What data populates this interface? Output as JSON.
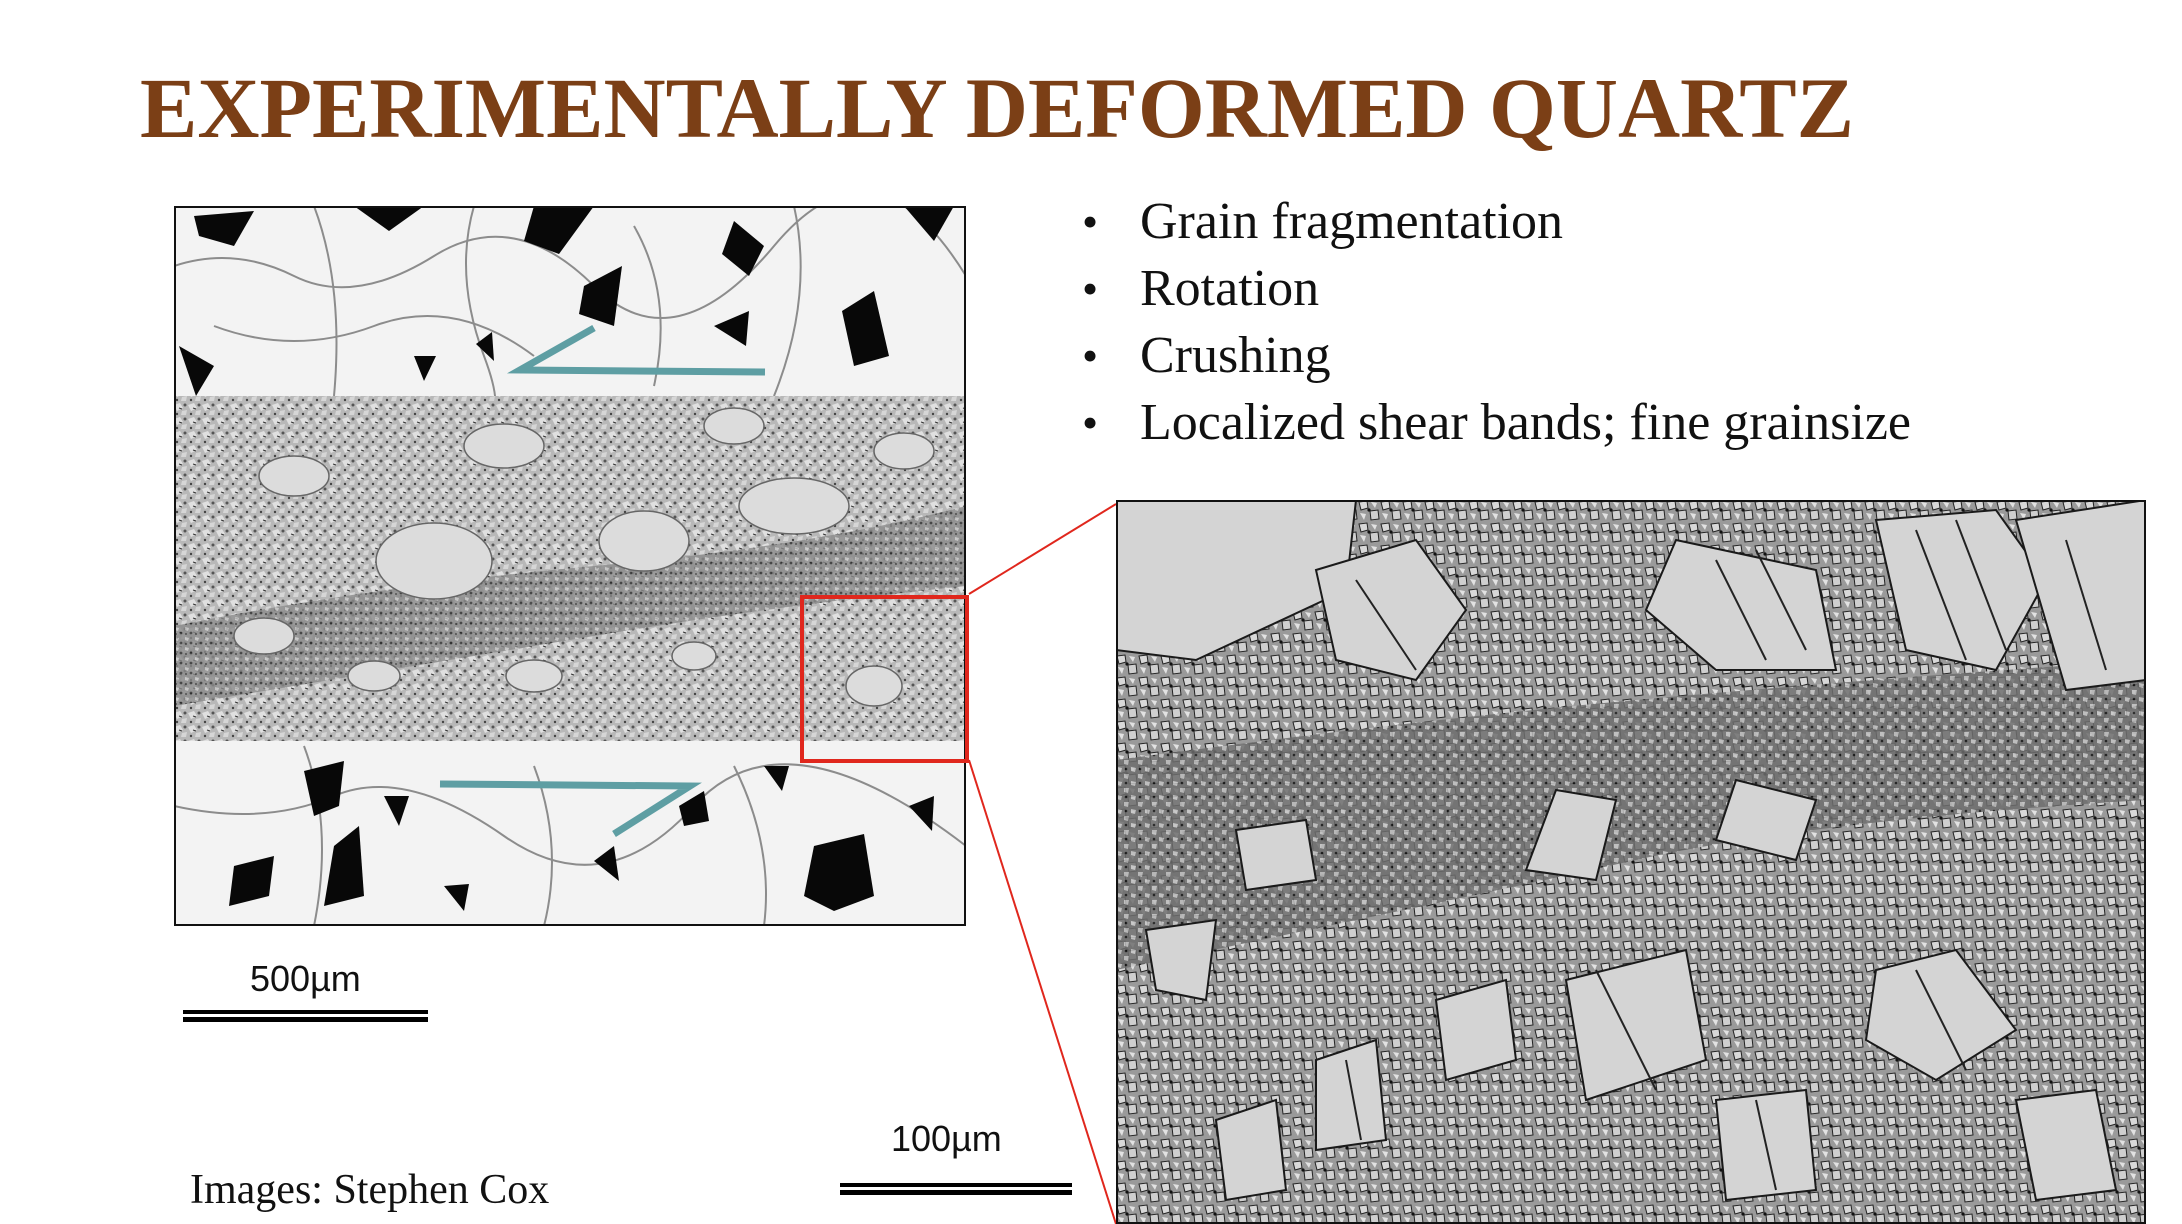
{
  "slide": {
    "title": "EXPERIMENTALLY DEFORMED QUARTZ",
    "bullets": [
      "Grain fragmentation",
      "Rotation",
      "Crushing",
      "Localized shear bands; fine grainsize"
    ],
    "credit": "Images: Stephen Cox",
    "scale_left_label": "500µm",
    "scale_right_label": "100µm"
  },
  "colors": {
    "title": "#7b3f16",
    "shear_arrows": "#5e9ea3",
    "zoom_box": "#e0271d"
  },
  "icons": {
    "left_image": "quartz-micrograph-overview",
    "right_image": "quartz-micrograph-zoom",
    "shear_sense": "half-arrow-icon"
  }
}
